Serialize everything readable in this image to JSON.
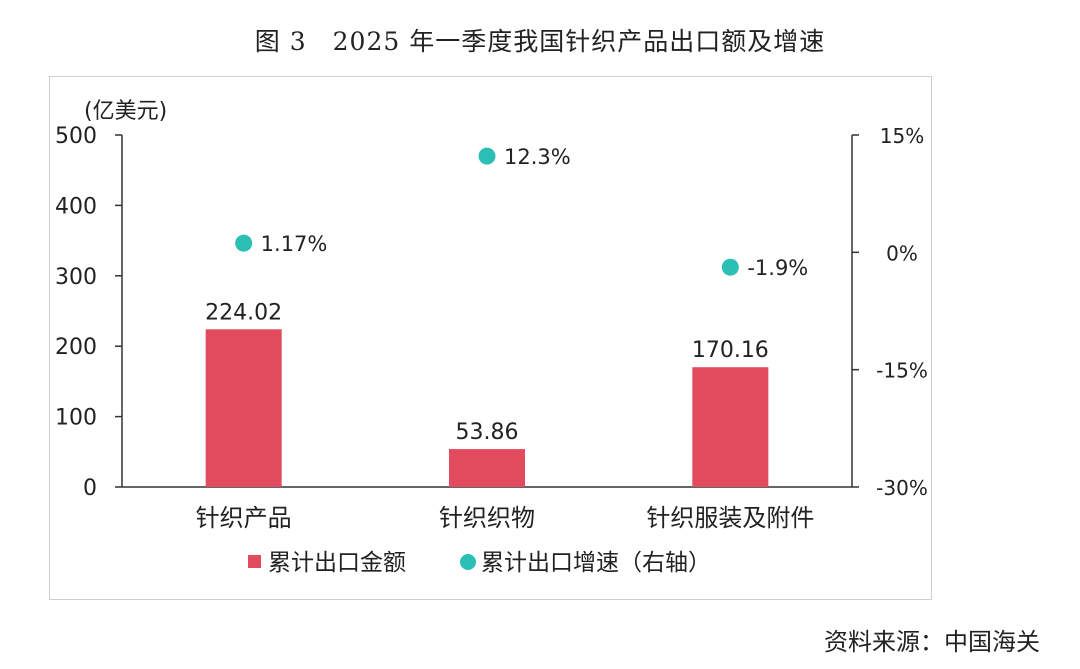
{
  "title": "图 3　2025 年一季度我国针织产品出口额及增速",
  "source": "资料来源：中国海关",
  "colors": {
    "bar": "#e24a5e",
    "dot": "#2bbfb5",
    "axis": "#333333"
  },
  "chart_data": {
    "type": "bar",
    "categories": [
      "针织产品",
      "针织织物",
      "针织服装及附件"
    ],
    "ylabel": "(亿美元)",
    "ylim": [
      0,
      500
    ],
    "yticks": [
      "0",
      "100",
      "200",
      "300",
      "400",
      "500"
    ],
    "y2lim": [
      -30,
      15
    ],
    "y2ticks": [
      "15%",
      "0%",
      "-15%",
      "-30%"
    ],
    "series": [
      {
        "name": "累计出口金额",
        "type": "bar",
        "axis": "left",
        "values": [
          224.02,
          53.86,
          170.16
        ],
        "labels": [
          "224.02",
          "53.86",
          "170.16"
        ]
      },
      {
        "name": "累计出口增速（右轴）",
        "type": "scatter",
        "axis": "right",
        "values": [
          1.17,
          12.3,
          -1.9
        ],
        "labels": [
          "1.17%",
          "12.3%",
          "-1.9%"
        ]
      }
    ],
    "legend_position": "bottom"
  }
}
